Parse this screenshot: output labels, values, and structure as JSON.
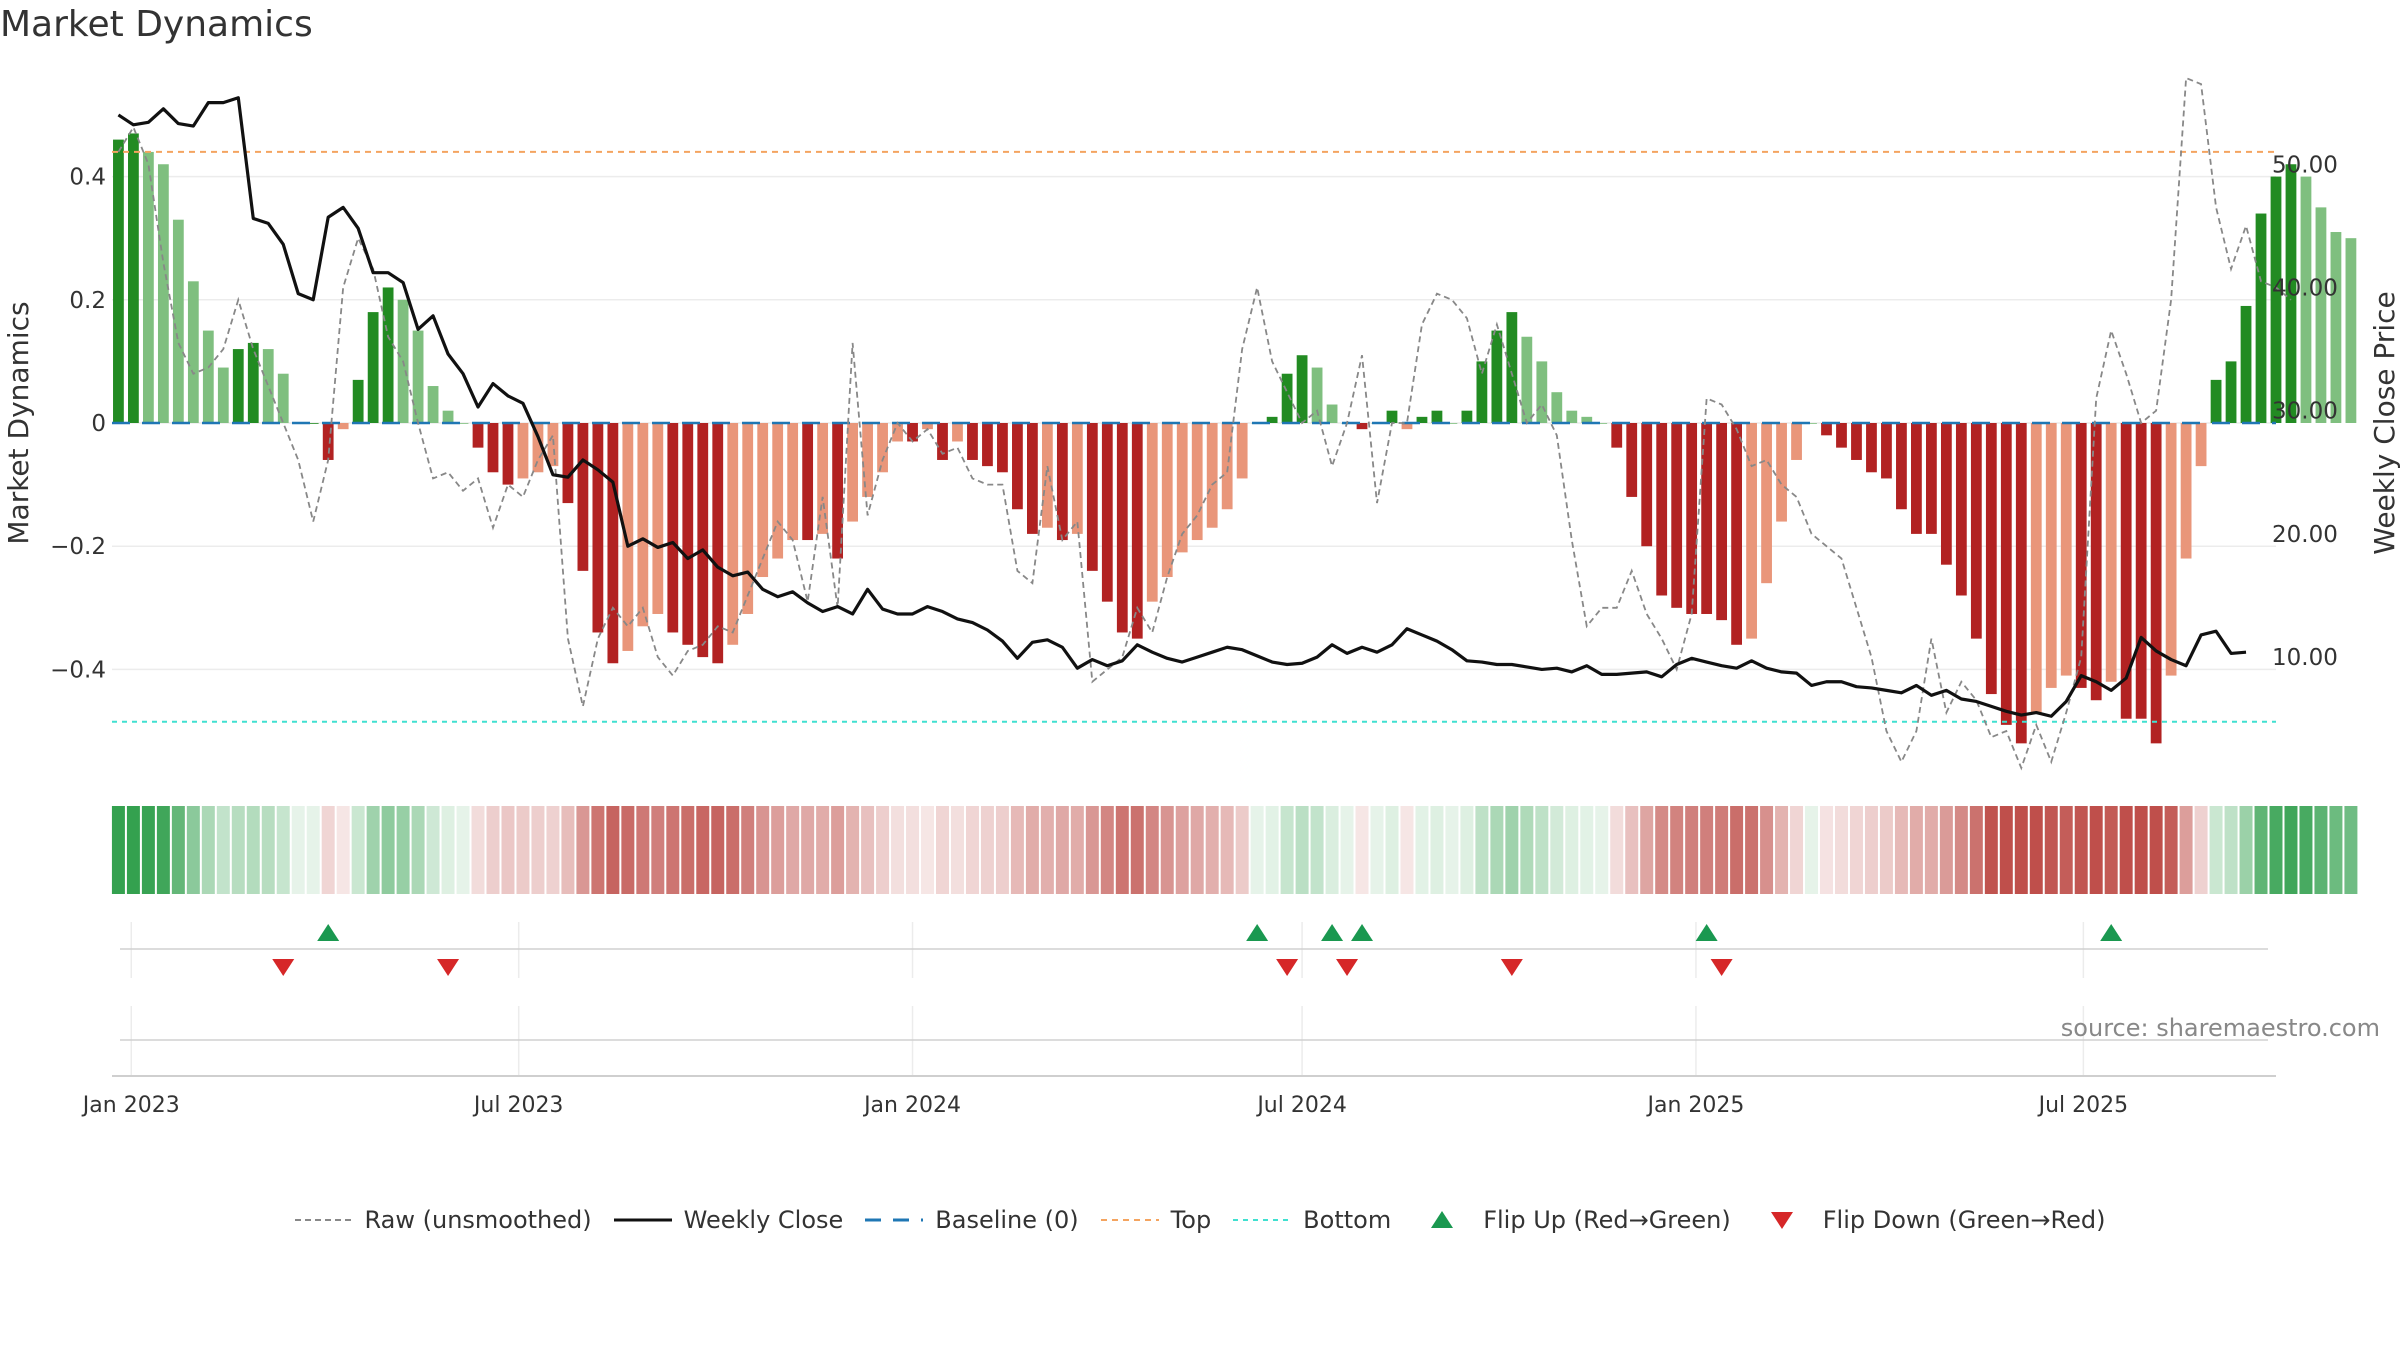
{
  "title": "Market Dynamics",
  "source": "source: sharemaestro.com",
  "colors": {
    "up_strong": "#228b22",
    "up_weak": "#7fbf7f",
    "down_strong": "#b22222",
    "down_weak": "#e9967a",
    "close": "#111111",
    "raw": "#888888",
    "baseline": "#1f77b4",
    "top": "#f4a460",
    "bottom": "#40e0d0",
    "flip_up": "#1a9850",
    "flip_down": "#d62728"
  },
  "chart_data": {
    "type": "bar",
    "title": "Market Dynamics",
    "ylabel": "Market Dynamics",
    "y2label": "Weekly Close Price",
    "ylim": [
      -0.56,
      0.56
    ],
    "y2lim": [
      1.0,
      57.0
    ],
    "yticks": [
      0.4,
      0.2,
      0,
      -0.2,
      -0.4
    ],
    "ytick_labels": [
      "0.4",
      "0.2",
      "0",
      "−0.2",
      "−0.4"
    ],
    "y2ticks": [
      50,
      40,
      30,
      20,
      10
    ],
    "y2tick_labels": [
      "50.00",
      "40.00",
      "30.00",
      "20.00",
      "10.00"
    ],
    "x_start": "2022-12-23",
    "x_end": "2025-09-29",
    "xticks": [
      "2023-01-01",
      "2023-07-01",
      "2024-01-01",
      "2024-07-01",
      "2025-01-01",
      "2025-07-01"
    ],
    "xtick_labels": [
      "Jan 2023",
      "Jul 2023",
      "Jan 2024",
      "Jul 2024",
      "Jan 2025",
      "Jul 2025"
    ],
    "first_week": "2022-12-26",
    "baseline": 0,
    "top_line": 0.44,
    "bottom_line": -0.485,
    "grid": true,
    "legend_position": "bottom",
    "series": [
      {
        "name": "Market Dynamics",
        "values": [
          0.46,
          0.47,
          0.44,
          0.42,
          0.33,
          0.23,
          0.15,
          0.09,
          0.12,
          0.13,
          0.12,
          0.08,
          0.0,
          0.0,
          -0.06,
          -0.01,
          0.07,
          0.18,
          0.22,
          0.2,
          0.15,
          0.06,
          0.02,
          0.0,
          -0.04,
          -0.08,
          -0.1,
          -0.09,
          -0.08,
          -0.07,
          -0.13,
          -0.24,
          -0.34,
          -0.39,
          -0.37,
          -0.33,
          -0.31,
          -0.34,
          -0.36,
          -0.38,
          -0.39,
          -0.36,
          -0.31,
          -0.25,
          -0.22,
          -0.19,
          -0.19,
          -0.18,
          -0.22,
          -0.16,
          -0.12,
          -0.08,
          -0.03,
          -0.03,
          -0.01,
          -0.06,
          -0.03,
          -0.06,
          -0.07,
          -0.08,
          -0.14,
          -0.18,
          -0.17,
          -0.19,
          -0.18,
          -0.24,
          -0.29,
          -0.34,
          -0.35,
          -0.29,
          -0.25,
          -0.21,
          -0.19,
          -0.17,
          -0.14,
          -0.09,
          0.0,
          0.01,
          0.08,
          0.11,
          0.09,
          0.03,
          0.0,
          -0.01,
          0.0,
          0.02,
          -0.01,
          0.01,
          0.02,
          0.0,
          0.02,
          0.1,
          0.15,
          0.18,
          0.14,
          0.1,
          0.05,
          0.02,
          0.01,
          0.0,
          -0.04,
          -0.12,
          -0.2,
          -0.28,
          -0.3,
          -0.31,
          -0.31,
          -0.32,
          -0.36,
          -0.35,
          -0.26,
          -0.16,
          -0.06,
          0.0,
          -0.02,
          -0.04,
          -0.06,
          -0.08,
          -0.09,
          -0.14,
          -0.18,
          -0.18,
          -0.23,
          -0.28,
          -0.35,
          -0.44,
          -0.49,
          -0.52,
          -0.47,
          -0.43,
          -0.41,
          -0.43,
          -0.45,
          -0.42,
          -0.48,
          -0.48,
          -0.52,
          -0.41,
          -0.22,
          -0.07,
          0.07,
          0.1,
          0.19,
          0.34,
          0.4,
          0.42,
          0.4,
          0.35,
          0.31,
          0.3
        ]
      },
      {
        "name": "Raw (unsmoothed)",
        "values": [
          0.44,
          0.48,
          0.42,
          0.26,
          0.13,
          0.08,
          0.09,
          0.12,
          0.2,
          0.12,
          0.06,
          0.0,
          -0.06,
          -0.16,
          -0.06,
          0.22,
          0.3,
          0.25,
          0.14,
          0.1,
          0.0,
          -0.09,
          -0.08,
          -0.11,
          -0.09,
          -0.17,
          -0.1,
          -0.12,
          -0.06,
          -0.02,
          -0.35,
          -0.46,
          -0.35,
          -0.3,
          -0.33,
          -0.3,
          -0.38,
          -0.41,
          -0.37,
          -0.36,
          -0.33,
          -0.34,
          -0.28,
          -0.22,
          -0.16,
          -0.19,
          -0.29,
          -0.12,
          -0.3,
          0.13,
          -0.15,
          -0.06,
          0.0,
          -0.03,
          -0.01,
          -0.05,
          -0.04,
          -0.09,
          -0.1,
          -0.1,
          -0.24,
          -0.26,
          -0.07,
          -0.19,
          -0.16,
          -0.42,
          -0.4,
          -0.38,
          -0.3,
          -0.34,
          -0.25,
          -0.18,
          -0.15,
          -0.1,
          -0.08,
          0.12,
          0.22,
          0.1,
          0.05,
          0.0,
          0.02,
          -0.07,
          0.0,
          0.11,
          -0.13,
          0.0,
          0.0,
          0.16,
          0.21,
          0.2,
          0.17,
          0.08,
          0.16,
          0.08,
          0.0,
          0.03,
          -0.02,
          -0.19,
          -0.33,
          -0.3,
          -0.3,
          -0.24,
          -0.31,
          -0.35,
          -0.4,
          -0.31,
          0.04,
          0.03,
          -0.01,
          -0.07,
          -0.06,
          -0.1,
          -0.12,
          -0.18,
          -0.2,
          -0.22,
          -0.3,
          -0.38,
          -0.5,
          -0.55,
          -0.5,
          -0.35,
          -0.47,
          -0.42,
          -0.45,
          -0.51,
          -0.5,
          -0.56,
          -0.49,
          -0.55,
          -0.47,
          -0.38,
          0.04,
          0.15,
          0.08,
          0.0,
          0.02,
          0.2,
          0.56,
          0.55,
          0.35,
          0.25,
          0.32,
          0.23,
          0.22,
          0.2
        ]
      },
      {
        "name": "Weekly Close",
        "values": [
          54.0,
          53.2,
          53.4,
          54.5,
          53.3,
          53.1,
          55.0,
          55.0,
          55.4,
          45.6,
          45.2,
          43.5,
          39.5,
          39.0,
          45.7,
          46.5,
          44.8,
          41.2,
          41.2,
          40.4,
          36.6,
          37.7,
          34.6,
          33.0,
          30.3,
          32.2,
          31.2,
          30.6,
          27.9,
          24.8,
          24.6,
          26.0,
          25.2,
          24.2,
          19.0,
          19.6,
          18.9,
          19.3,
          18.0,
          18.7,
          17.3,
          16.6,
          16.9,
          15.5,
          14.9,
          15.3,
          14.4,
          13.7,
          14.1,
          13.5,
          15.5,
          13.9,
          13.5,
          13.5,
          14.1,
          13.7,
          13.1,
          12.8,
          12.2,
          11.3,
          9.9,
          11.2,
          11.4,
          10.8,
          9.1,
          9.8,
          9.3,
          9.7,
          11.0,
          10.4,
          9.9,
          9.6,
          10.0,
          10.4,
          10.8,
          10.6,
          10.1,
          9.6,
          9.4,
          9.5,
          10.0,
          11.0,
          10.3,
          10.8,
          10.4,
          11.0,
          12.3,
          11.8,
          11.3,
          10.6,
          9.7,
          9.6,
          9.4,
          9.4,
          9.2,
          9.0,
          9.1,
          8.8,
          9.3,
          8.6,
          8.6,
          8.7,
          8.8,
          8.4,
          9.4,
          9.9,
          9.6,
          9.3,
          9.1,
          9.7,
          9.1,
          8.8,
          8.7,
          7.7,
          8.0,
          8.0,
          7.6,
          7.5,
          7.3,
          7.1,
          7.7,
          6.9,
          7.3,
          6.6,
          6.4,
          6.0,
          5.6,
          5.3,
          5.5,
          5.2,
          6.4,
          8.5,
          8.0,
          7.3,
          8.3,
          11.6,
          10.5,
          9.8,
          9.3,
          11.8,
          12.1,
          10.3,
          10.4
        ]
      }
    ],
    "flips_up": [
      "2023-04-03",
      "2024-06-10",
      "2024-07-15",
      "2024-07-29",
      "2025-01-06",
      "2025-07-14"
    ],
    "flips_down": [
      "2023-03-13",
      "2023-05-29",
      "2024-06-24",
      "2024-07-22",
      "2024-10-07",
      "2025-01-13"
    ],
    "legend": [
      "Raw (unsmoothed)",
      "Weekly Close",
      "Baseline (0)",
      "Top",
      "Bottom",
      "Flip Up (Red→Green)",
      "Flip Down (Green→Red)"
    ]
  }
}
